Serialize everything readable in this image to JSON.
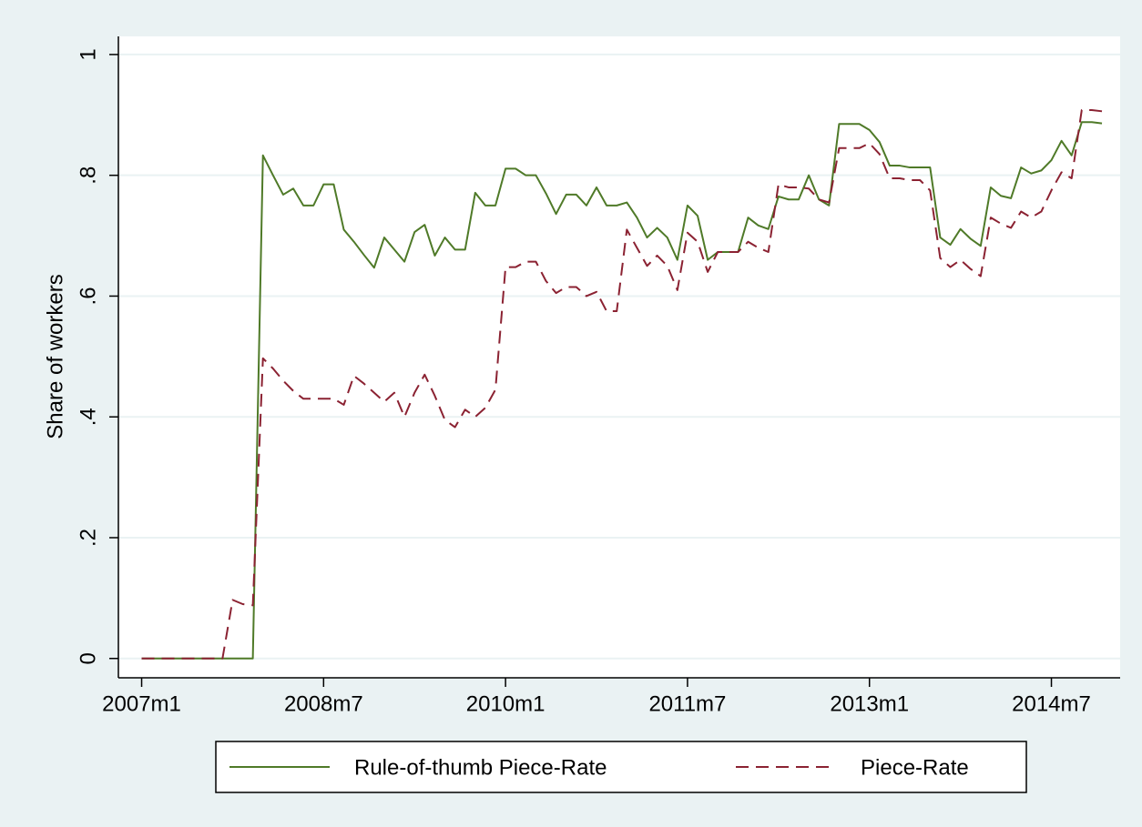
{
  "chart_data": {
    "type": "line",
    "ylabel": "Share of workers",
    "x": [
      564,
      565,
      566,
      567,
      568,
      569,
      570,
      571,
      572,
      573,
      574,
      575,
      576,
      577,
      578,
      579,
      580,
      581,
      582,
      583,
      584,
      585,
      586,
      587,
      588,
      589,
      590,
      591,
      592,
      593,
      594,
      595,
      596,
      597,
      598,
      599,
      600,
      601,
      602,
      603,
      604,
      605,
      606,
      607,
      608,
      609,
      610,
      611,
      612,
      613,
      614,
      615,
      616,
      617,
      618,
      619,
      620,
      621,
      622,
      623,
      624,
      625,
      626,
      627,
      628,
      629,
      630,
      631,
      632,
      633,
      634,
      635,
      636,
      637,
      638,
      639,
      640,
      641,
      642,
      643,
      644,
      645,
      646,
      647,
      648,
      649,
      650,
      651,
      652,
      653,
      654,
      655,
      656,
      657,
      658,
      659
    ],
    "series": [
      {
        "name": "Rule-of-thumb Piece-Rate",
        "color": "#4f7a28",
        "dash": false,
        "values": [
          0,
          0,
          0,
          0,
          0,
          0,
          0,
          0,
          0,
          0,
          0,
          0,
          0.833,
          0.8,
          0.768,
          0.778,
          0.75,
          0.75,
          0.785,
          0.785,
          0.71,
          0.69,
          0.668,
          0.647,
          0.697,
          0.677,
          0.657,
          0.706,
          0.718,
          0.667,
          0.697,
          0.677,
          0.677,
          0.771,
          0.75,
          0.75,
          0.811,
          0.811,
          0.8,
          0.8,
          0.77,
          0.736,
          0.768,
          0.768,
          0.75,
          0.78,
          0.75,
          0.75,
          0.755,
          0.73,
          0.697,
          0.713,
          0.697,
          0.66,
          0.75,
          0.733,
          0.66,
          0.673,
          0.673,
          0.673,
          0.73,
          0.717,
          0.711,
          0.765,
          0.76,
          0.76,
          0.8,
          0.76,
          0.75,
          0.885,
          0.885,
          0.885,
          0.875,
          0.855,
          0.816,
          0.816,
          0.813,
          0.813,
          0.813,
          0.697,
          0.685,
          0.711,
          0.695,
          0.683,
          0.78,
          0.766,
          0.762,
          0.813,
          0.803,
          0.808,
          0.825,
          0.857,
          0.833,
          0.888,
          0.888,
          0.886
        ]
      },
      {
        "name": "Piece-Rate",
        "color": "#8b2232",
        "dash": true,
        "values": [
          0,
          0,
          0,
          0,
          0,
          0,
          0,
          0,
          0,
          0.097,
          0.09,
          0.088,
          0.497,
          0.48,
          0.46,
          0.443,
          0.43,
          0.43,
          0.43,
          0.43,
          0.42,
          0.468,
          0.455,
          0.44,
          0.425,
          0.44,
          0.4,
          0.44,
          0.47,
          0.435,
          0.395,
          0.383,
          0.412,
          0.4,
          0.415,
          0.445,
          0.648,
          0.648,
          0.657,
          0.657,
          0.625,
          0.605,
          0.615,
          0.615,
          0.6,
          0.607,
          0.575,
          0.575,
          0.71,
          0.68,
          0.65,
          0.667,
          0.65,
          0.61,
          0.705,
          0.69,
          0.64,
          0.673,
          0.673,
          0.673,
          0.69,
          0.68,
          0.673,
          0.785,
          0.78,
          0.78,
          0.778,
          0.76,
          0.755,
          0.845,
          0.845,
          0.845,
          0.853,
          0.835,
          0.795,
          0.795,
          0.792,
          0.792,
          0.775,
          0.663,
          0.648,
          0.66,
          0.645,
          0.633,
          0.73,
          0.72,
          0.713,
          0.74,
          0.73,
          0.74,
          0.775,
          0.805,
          0.795,
          0.908,
          0.908,
          0.906
        ]
      }
    ],
    "xlim": [
      561.7,
      660.8
    ],
    "xticks": [
      {
        "value": 564,
        "label": "2007m1"
      },
      {
        "value": 582,
        "label": "2008m7"
      },
      {
        "value": 600,
        "label": "2010m1"
      },
      {
        "value": 618,
        "label": "2011m7"
      },
      {
        "value": 636,
        "label": "2013m1"
      },
      {
        "value": 654,
        "label": "2014m7"
      }
    ],
    "ylim": [
      -0.032,
      1.03
    ],
    "yticks": [
      0,
      {
        "value": 0.2,
        "label": ".2"
      },
      {
        "value": 0.4,
        "label": ".4"
      },
      {
        "value": 0.6,
        "label": ".6"
      },
      {
        "value": 0.8,
        "label": ".8"
      },
      1
    ],
    "grid": true,
    "legend": "bottom"
  }
}
